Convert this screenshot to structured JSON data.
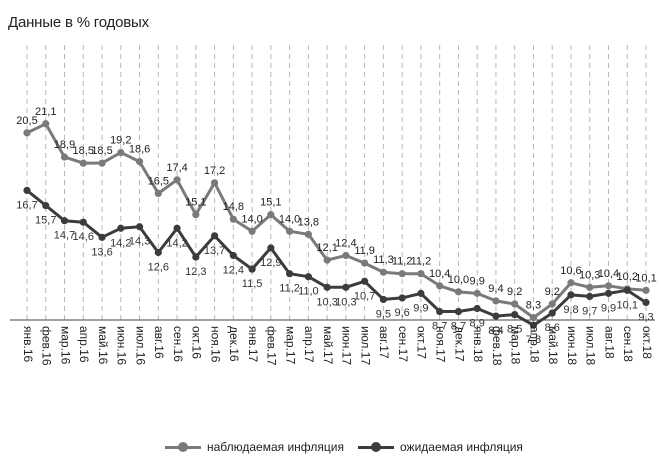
{
  "chart_data": {
    "type": "line",
    "title": "Данные в % годовых",
    "categories": [
      "янв.16",
      "фев.16",
      "мар.16",
      "апр.16",
      "май.16",
      "июн.16",
      "июл.16",
      "авг.16",
      "сен.16",
      "окт.16",
      "ноя.16",
      "дек.16",
      "янв.17",
      "фев.17",
      "мар.17",
      "апр.17",
      "май.17",
      "июн.17",
      "июл.17",
      "авг.17",
      "сен.17",
      "окт.17",
      "ноя.17",
      "дек.17",
      "янв.18",
      "фев.18",
      "мар.18",
      "апр.18",
      "май.18",
      "июн.18",
      "июл.18",
      "авг.18",
      "сен.18",
      "окт.18"
    ],
    "series": [
      {
        "name": "наблюдаемая инфляция",
        "color": "#7a7a7a",
        "values": [
          20.5,
          21.1,
          18.9,
          18.5,
          18.5,
          19.2,
          18.6,
          16.5,
          17.4,
          15.1,
          17.2,
          14.8,
          14.0,
          15.1,
          14.0,
          13.8,
          12.1,
          12.4,
          11.9,
          11.3,
          11.2,
          11.2,
          10.4,
          10.0,
          9.9,
          9.4,
          9.2,
          8.3,
          9.2,
          10.6,
          10.3,
          10.4,
          10.2,
          10.1
        ],
        "labels": [
          "20,5",
          "21,1",
          "18,9",
          "18,5",
          "18,5",
          "19,2",
          "18,6",
          "16,5",
          "17,4",
          "15,1",
          "17,2",
          "14,8",
          "14,0",
          "15,1",
          "14,0",
          "13,8",
          "12,1",
          "12,4",
          "11,9",
          "11,3",
          "11,2",
          "11,2",
          "10,4",
          "10,0",
          "9,9",
          "9,4",
          "9,2",
          "8,3",
          "9,2",
          "10,6",
          "10,3",
          "10,4",
          "10,2",
          "10,1"
        ]
      },
      {
        "name": "ожидаемая инфляция",
        "color": "#3c3c3c",
        "values": [
          16.7,
          15.7,
          14.7,
          14.6,
          13.6,
          14.2,
          14.3,
          12.6,
          14.2,
          12.3,
          13.7,
          12.4,
          11.5,
          12.9,
          11.2,
          11.0,
          10.3,
          10.3,
          10.7,
          9.5,
          9.6,
          9.9,
          8.7,
          8.7,
          8.9,
          8.4,
          8.5,
          7.8,
          8.6,
          9.8,
          9.7,
          9.9,
          10.1,
          9.3
        ],
        "labels": [
          "16,7",
          "15,7",
          "14,7",
          "14,6",
          "13,6",
          "14,2",
          "14,3",
          "12,6",
          "14,2",
          "12,3",
          "13,7",
          "12,4",
          "11,5",
          "12,9",
          "11,2",
          "11,0",
          "10,3",
          "10,3",
          "10,7",
          "9,5",
          "9,6",
          "9,9",
          "8,7",
          "8,7",
          "8,9",
          "8,4",
          "8,5",
          "7,8",
          "8,6",
          "9,8",
          "9,7",
          "9,9",
          "10,1",
          "9,3"
        ]
      }
    ],
    "ylim": [
      2,
      23
    ],
    "grid": "vertical dashed",
    "legend_position": "bottom"
  },
  "legend": {
    "observed_label": "наблюдаемая инфляция",
    "expected_label": "ожидаемая инфляция"
  }
}
